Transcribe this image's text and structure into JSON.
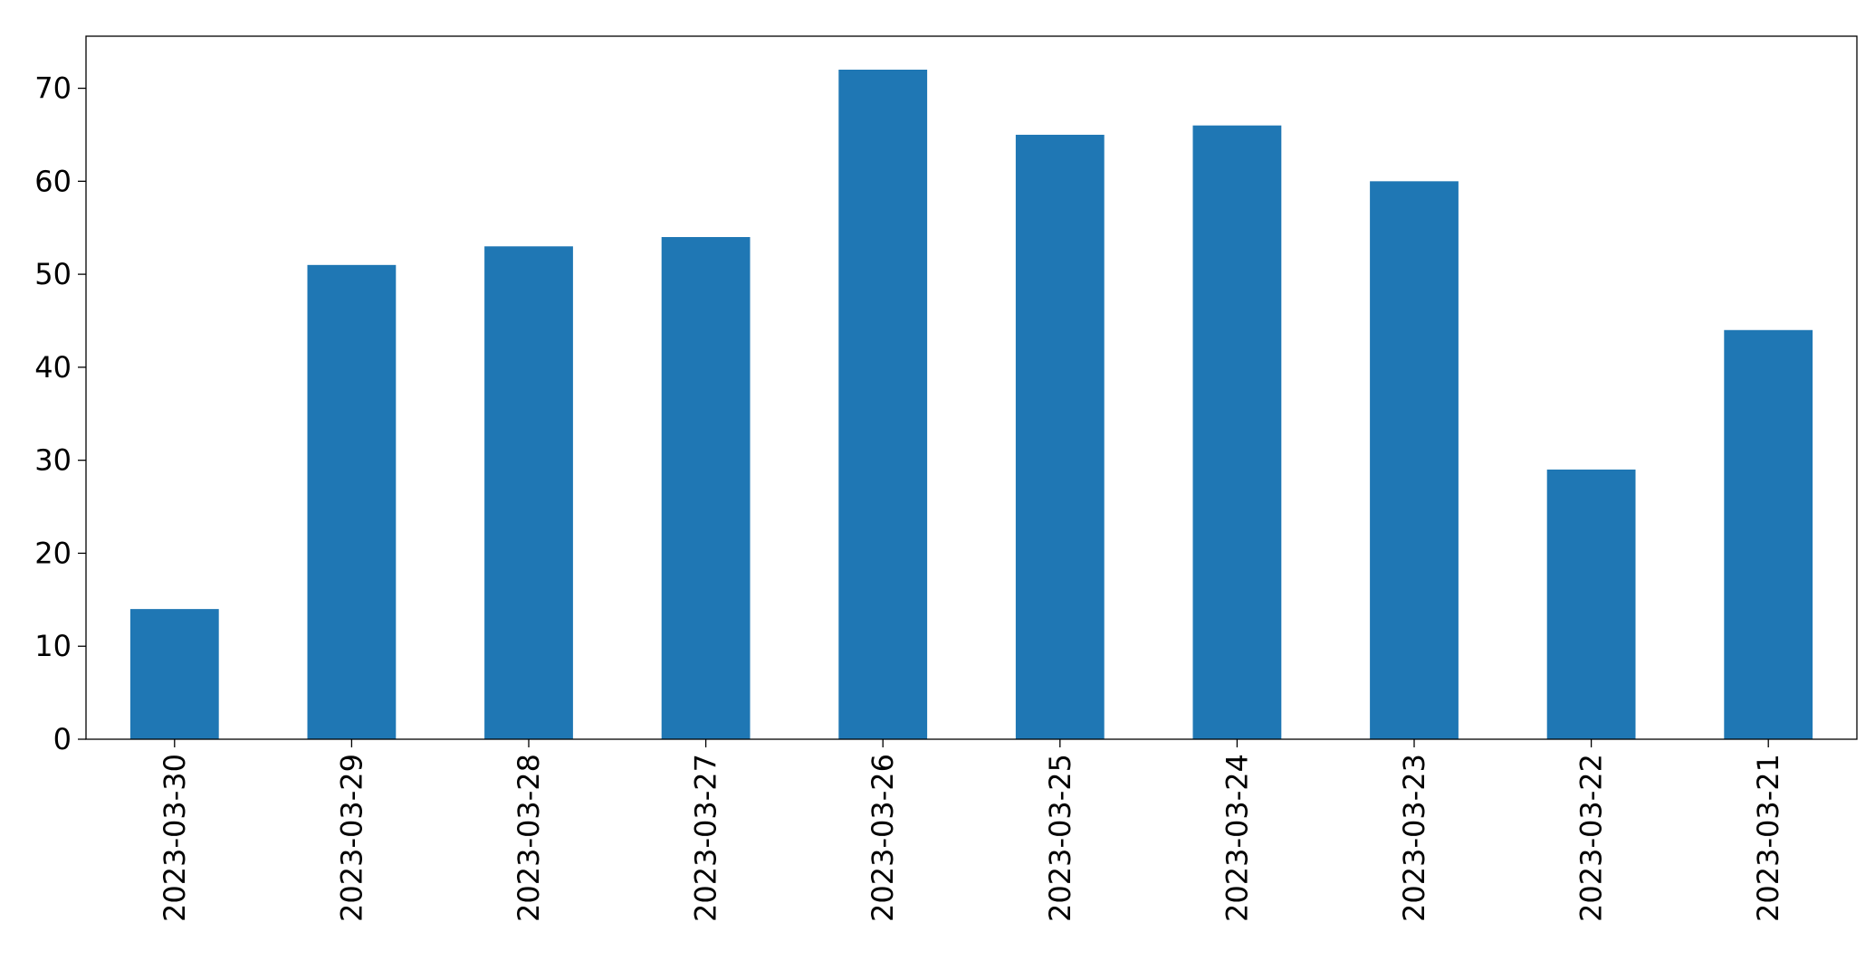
{
  "chart_data": {
    "type": "bar",
    "categories": [
      "2023-03-30",
      "2023-03-29",
      "2023-03-28",
      "2023-03-27",
      "2023-03-26",
      "2023-03-25",
      "2023-03-24",
      "2023-03-23",
      "2023-03-22",
      "2023-03-21"
    ],
    "values": [
      14,
      51,
      53,
      54,
      72,
      65,
      66,
      60,
      29,
      44
    ],
    "color": "#1f77b4",
    "ylim": [
      0,
      75.6
    ],
    "yticks": [
      0,
      10,
      20,
      30,
      40,
      50,
      60,
      70
    ],
    "grid": false
  }
}
